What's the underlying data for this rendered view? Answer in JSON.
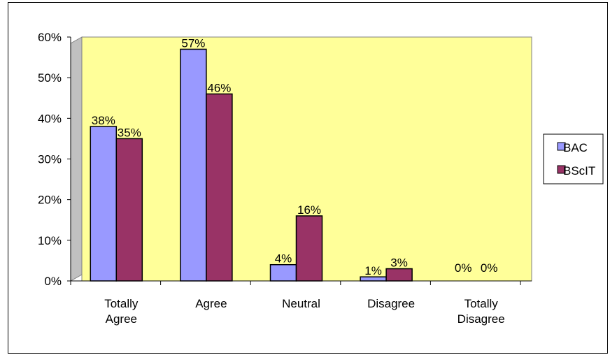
{
  "chart_data": {
    "type": "bar",
    "categories": [
      [
        "Totally",
        "Agree"
      ],
      [
        "Agree"
      ],
      [
        "Neutral"
      ],
      [
        "Disagree"
      ],
      [
        "Totally",
        "Disagree"
      ]
    ],
    "series": [
      {
        "name": "BAC",
        "values": [
          38,
          57,
          4,
          1,
          0
        ],
        "labels": [
          "38%",
          "57%",
          "4%",
          "1%",
          "0%"
        ],
        "color": "#9999ff"
      },
      {
        "name": "BScIT",
        "values": [
          35,
          46,
          16,
          3,
          0
        ],
        "labels": [
          "35%",
          "46%",
          "16%",
          "3%",
          "0%"
        ],
        "color": "#993366"
      }
    ],
    "ylim": [
      0,
      60
    ],
    "yticks": [
      "0%",
      "10%",
      "20%",
      "30%",
      "40%",
      "50%",
      "60%"
    ],
    "plot_background": "#ffff99",
    "gridlines": false,
    "legend_position": "right"
  }
}
